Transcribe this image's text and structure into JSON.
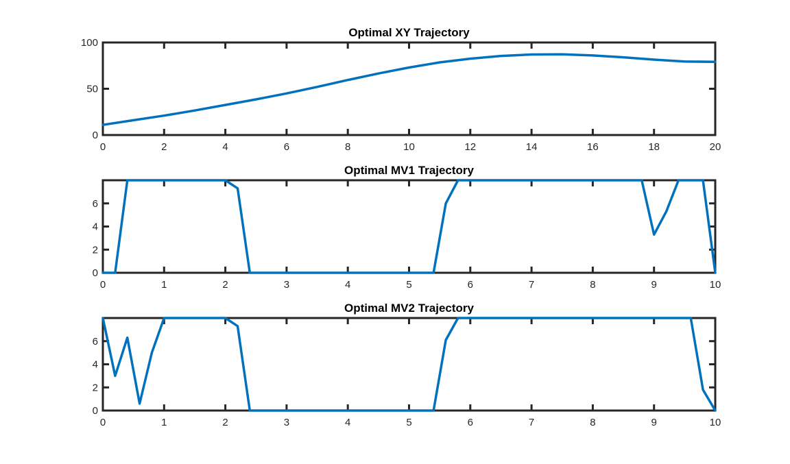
{
  "chart_data": [
    {
      "type": "line",
      "title": "Optimal XY Trajectory",
      "xlabel": "",
      "ylabel": "",
      "xlim": [
        0,
        20
      ],
      "ylim": [
        0,
        100
      ],
      "xticks": [
        0,
        2,
        4,
        6,
        8,
        10,
        12,
        14,
        16,
        18,
        20
      ],
      "yticks": [
        0,
        50,
        100
      ],
      "grid": false,
      "line_color": "#0072BD",
      "series": [
        {
          "x": [
            0,
            1,
            2,
            3,
            4,
            5,
            6,
            7,
            8,
            9,
            10,
            11,
            12,
            13,
            14,
            15,
            16,
            17,
            18,
            19,
            20
          ],
          "y": [
            11,
            16,
            21,
            26.5,
            32.5,
            38.5,
            45,
            52,
            59.5,
            66.5,
            73,
            78.5,
            82.5,
            85.5,
            87,
            87.2,
            86,
            84,
            81.5,
            79.5,
            79
          ]
        }
      ]
    },
    {
      "type": "line",
      "title": "Optimal MV1 Trajectory",
      "xlabel": "",
      "ylabel": "",
      "xlim": [
        0,
        10
      ],
      "ylim": [
        0,
        8
      ],
      "xticks": [
        0,
        1,
        2,
        3,
        4,
        5,
        6,
        7,
        8,
        9,
        10
      ],
      "yticks": [
        0,
        2,
        4,
        6
      ],
      "grid": false,
      "line_color": "#0072BD",
      "series": [
        {
          "x": [
            0,
            0.2,
            0.4,
            1.0,
            2.0,
            2.2,
            2.4,
            5.4,
            5.6,
            5.8,
            8.8,
            9.0,
            9.2,
            9.4,
            9.8,
            10.0
          ],
          "y": [
            0,
            0,
            8,
            8,
            8,
            7.3,
            0,
            0,
            6.0,
            8,
            8,
            3.3,
            5.3,
            8,
            8,
            0
          ]
        }
      ]
    },
    {
      "type": "line",
      "title": "Optimal MV2 Trajectory",
      "xlabel": "",
      "ylabel": "",
      "xlim": [
        0,
        10
      ],
      "ylim": [
        0,
        8
      ],
      "xticks": [
        0,
        1,
        2,
        3,
        4,
        5,
        6,
        7,
        8,
        9,
        10
      ],
      "yticks": [
        0,
        2,
        4,
        6
      ],
      "grid": false,
      "line_color": "#0072BD",
      "series": [
        {
          "x": [
            0,
            0.2,
            0.4,
            0.6,
            0.8,
            1.0,
            2.0,
            2.2,
            2.4,
            5.4,
            5.6,
            5.8,
            9.6,
            9.8,
            10.0
          ],
          "y": [
            8,
            3.0,
            6.3,
            0.6,
            5.0,
            8,
            8,
            7.3,
            0,
            0,
            6.1,
            8,
            8,
            1.8,
            0
          ]
        }
      ]
    }
  ]
}
